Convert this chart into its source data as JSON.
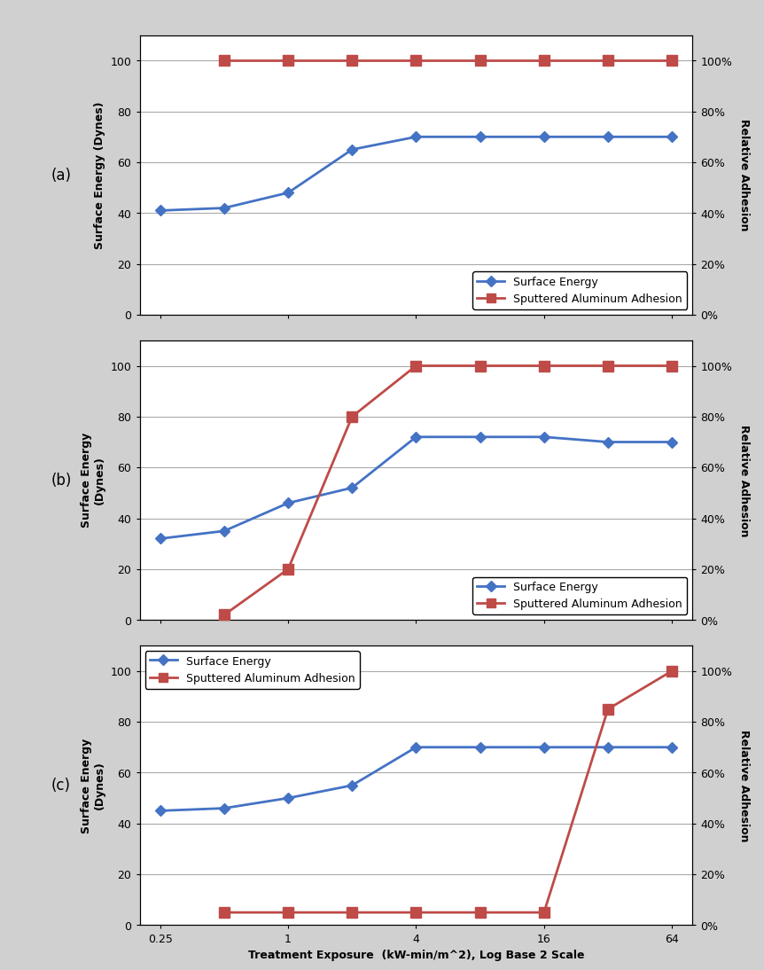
{
  "x_ticks": [
    0.25,
    1,
    4,
    16,
    64
  ],
  "x_tick_labels": [
    "0.25",
    "1",
    "4",
    "16",
    "64"
  ],
  "xlabel": "Treatment Exposure  (kW-min/m^2), Log Base 2 Scale",
  "ylabel_left_a": "Surface Energy (Dynes)",
  "ylabel_left_bc": "Surface Energy\n(Dynes)",
  "ylabel_right": "Relative Adhesion",
  "panel_labels": [
    "(a)",
    "(b)",
    "(c)"
  ],
  "blue_color": "#4472C4",
  "red_color": "#BE4B48",
  "panel_a": {
    "surface_energy_x": [
      0.25,
      0.5,
      1,
      2,
      4,
      8,
      16,
      32,
      64
    ],
    "surface_energy_y": [
      41,
      42,
      48,
      65,
      70,
      70,
      70,
      70,
      70
    ],
    "adhesion_x": [
      0.5,
      1,
      2,
      4,
      8,
      16,
      32,
      64
    ],
    "adhesion_y": [
      100,
      100,
      100,
      100,
      100,
      100,
      100,
      100
    ],
    "legend_loc": "lower right"
  },
  "panel_b": {
    "surface_energy_x": [
      0.25,
      0.5,
      1,
      2,
      4,
      8,
      16,
      32,
      64
    ],
    "surface_energy_y": [
      32,
      35,
      46,
      52,
      72,
      72,
      72,
      70,
      70
    ],
    "adhesion_x": [
      0.5,
      1,
      2,
      4,
      8,
      16,
      32,
      64
    ],
    "adhesion_y": [
      2,
      20,
      80,
      100,
      100,
      100,
      100,
      100
    ],
    "legend_loc": "lower right"
  },
  "panel_c": {
    "surface_energy_x": [
      0.25,
      0.5,
      1,
      2,
      4,
      8,
      16,
      32,
      64
    ],
    "surface_energy_y": [
      45,
      46,
      50,
      55,
      70,
      70,
      70,
      70,
      70
    ],
    "adhesion_x": [
      0.5,
      1,
      2,
      4,
      8,
      16,
      32,
      64
    ],
    "adhesion_y": [
      5,
      5,
      5,
      5,
      5,
      5,
      85,
      100
    ],
    "legend_loc": "upper left"
  }
}
